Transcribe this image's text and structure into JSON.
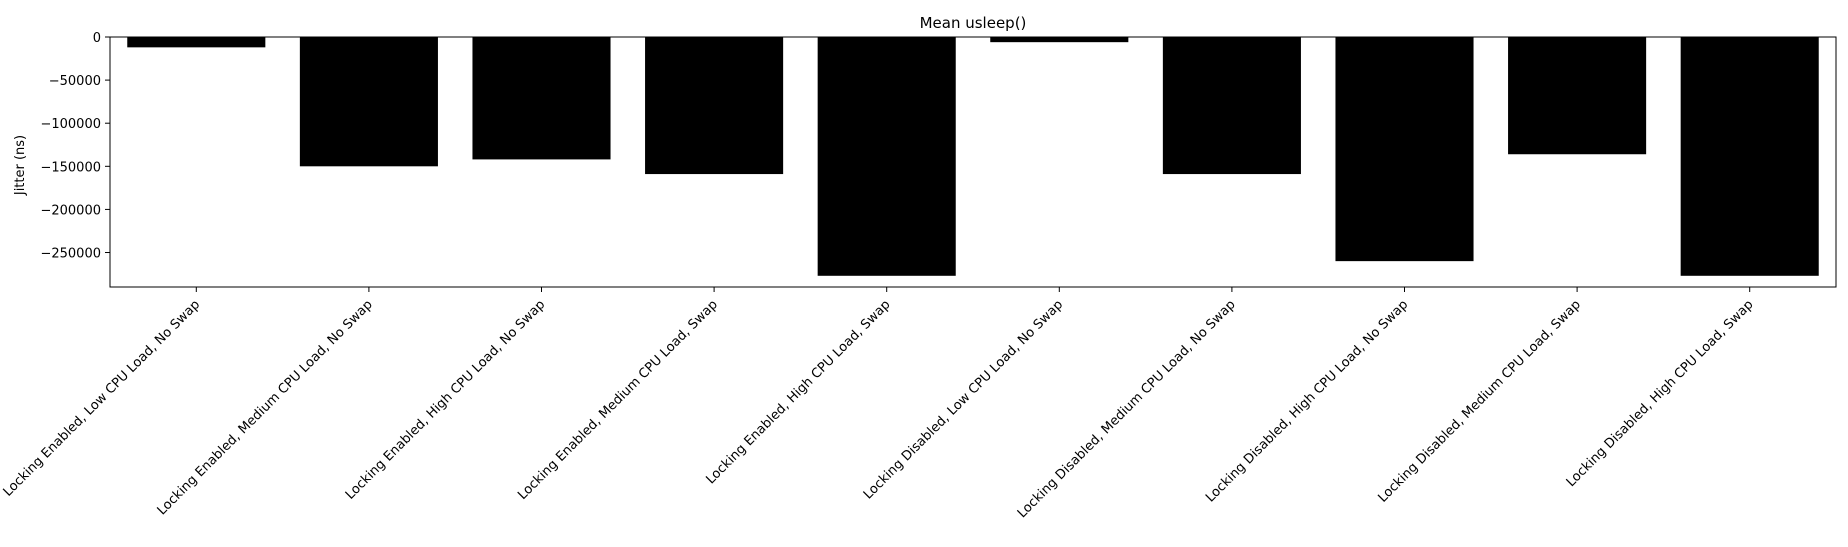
{
  "chart_data": {
    "type": "bar",
    "title": "Mean usleep()",
    "xlabel": "",
    "ylabel": "Jitter (ns)",
    "ylim": [
      -290000,
      0
    ],
    "yticks": [
      0,
      -50000,
      -100000,
      -150000,
      -200000,
      -250000
    ],
    "ytick_labels": [
      "0",
      "−50000",
      "−100000",
      "−150000",
      "−200000",
      "−250000"
    ],
    "categories": [
      "Locking Enabled, Low CPU Load, No Swap",
      "Locking Enabled, Medium CPU Load, No Swap",
      "Locking Enabled, High CPU Load, No Swap",
      "Locking Enabled, Medium CPU Load, Swap",
      "Locking Enabled, High CPU Load, Swap",
      "Locking Disabled, Low CPU Load, No Swap",
      "Locking Disabled, Medium CPU Load, No Swap",
      "Locking Disabled, High CPU Load, No Swap",
      "Locking Disabled, Medium CPU Load, Swap",
      "Locking Disabled, High CPU Load, Swap"
    ],
    "values": [
      -12000,
      -150000,
      -142000,
      -159000,
      -277000,
      -6000,
      -159000,
      -260000,
      -136000,
      -277000
    ],
    "bar_color": "#000000",
    "grid": false,
    "legend": "none"
  }
}
